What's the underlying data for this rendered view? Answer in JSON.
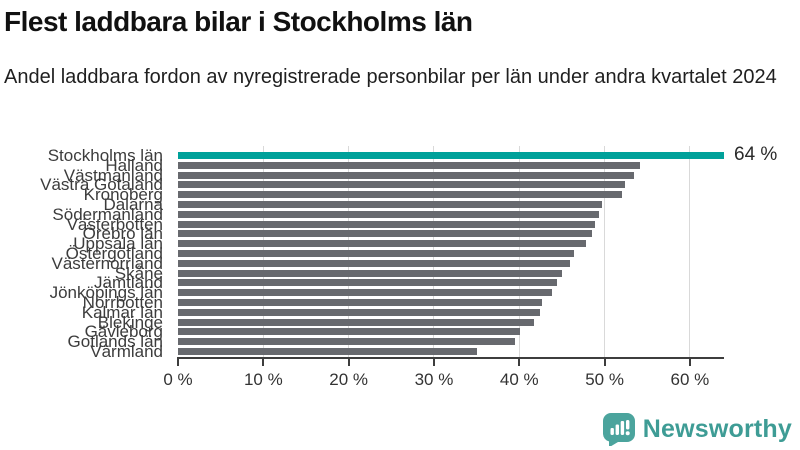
{
  "header": {
    "title": "Flest laddbara bilar i Stockholms län",
    "subtitle": "Andel laddbara fordon av nyregistrerade personbilar per län under andra kvartalet 2024"
  },
  "chart_data": {
    "type": "bar",
    "orientation": "horizontal",
    "title": "Flest laddbara bilar i Stockholms län",
    "subtitle": "Andel laddbara fordon av nyregistrerade personbilar per län under andra kvartalet 2024",
    "unit": "%",
    "categories": [
      "Stockholms län",
      "Halland",
      "Västmanland",
      "Västra Götaland",
      "Kronoberg",
      "Dalarna",
      "Södermanland",
      "Västerbotten",
      "Örebro län",
      "Uppsala län",
      "Östergötland",
      "Västernorrland",
      "Skåne",
      "Jämtland",
      "Jönköpings län",
      "Norrbotten",
      "Kalmar län",
      "Blekinge",
      "Gävleborg",
      "Gotlands län",
      "Värmland"
    ],
    "values": [
      64,
      54.2,
      53.4,
      52.4,
      52,
      49.7,
      49.4,
      48.9,
      48.5,
      47.8,
      46.4,
      45.9,
      45,
      44.4,
      43.8,
      42.7,
      42.4,
      41.7,
      40.1,
      39.5,
      35
    ],
    "xlim": [
      0,
      64
    ],
    "x_ticks": [
      0,
      10,
      20,
      30,
      40,
      50,
      60
    ],
    "x_tick_labels": [
      "0 %",
      "10 %",
      "20 %",
      "30 %",
      "40 %",
      "50 %",
      "60 %"
    ],
    "grid": true,
    "grid_ticks": [
      10,
      20,
      30,
      40,
      50,
      60
    ],
    "gridline_color": "#d9d9d9",
    "highlight_index": 0,
    "highlight_color": "#00a19a",
    "bar_color": "#67696e",
    "annotation": {
      "text": "64 %",
      "value": 64,
      "category": "Stockholms län"
    },
    "legend": "none"
  },
  "footer": {
    "brand": "Newsworthy",
    "brand_color": "#3e9c95",
    "logo_icon": "bar-chart-speech-bubble-icon",
    "logo_icon_color": "#4ba49d"
  }
}
